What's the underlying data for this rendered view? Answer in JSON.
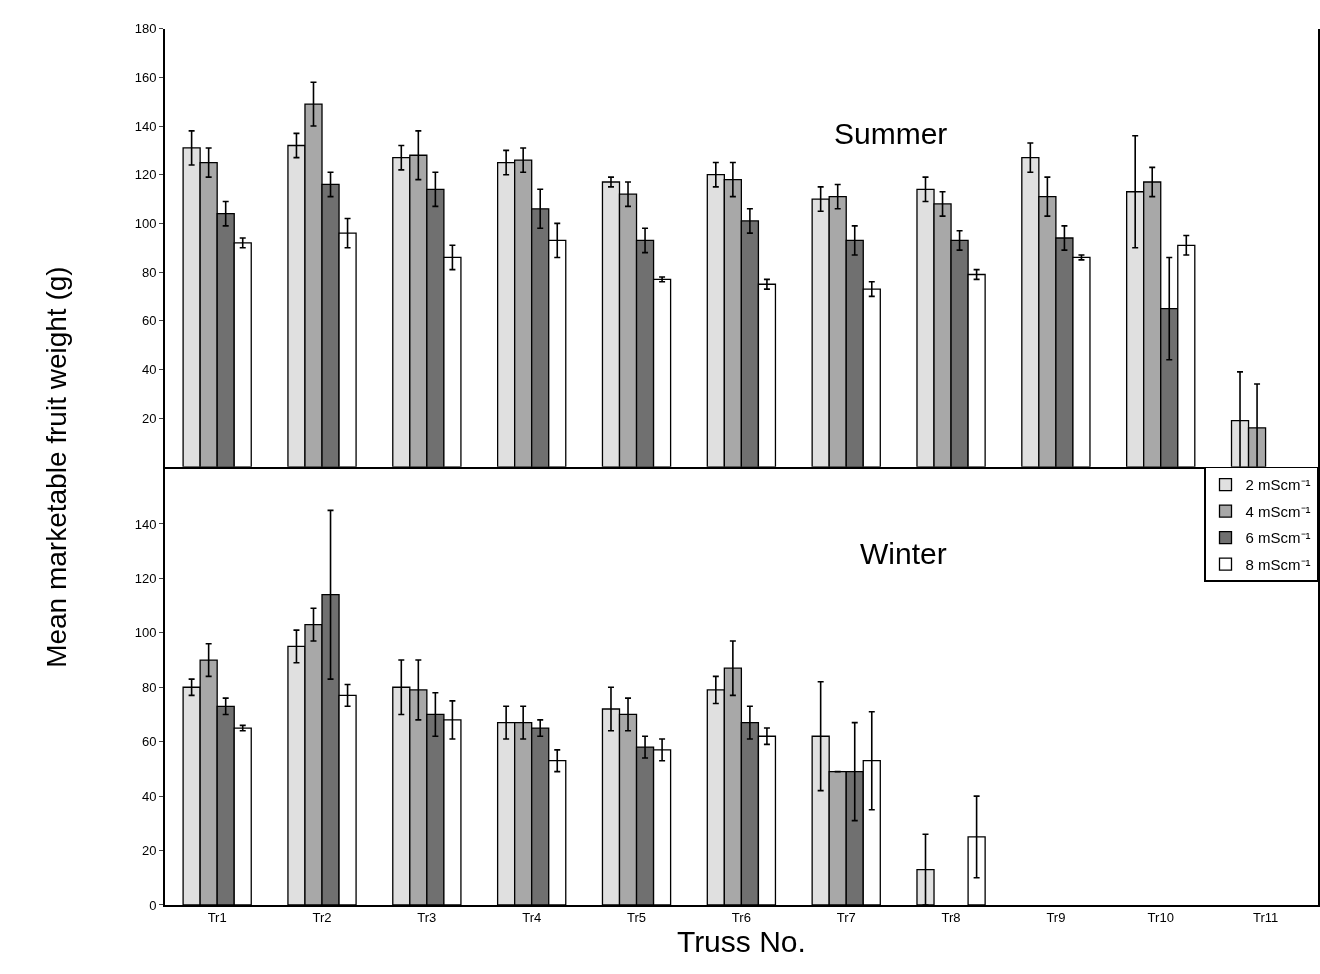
{
  "chart_data": [
    {
      "type": "bar",
      "title": "Summer",
      "ylabel": "Mean marketable fruit weight (g)",
      "categories": [
        null,
        null,
        null,
        null,
        null,
        null,
        null,
        null,
        null,
        null,
        null
      ],
      "series": [
        {
          "color": "#e0e0e0",
          "values": [
            131,
            132,
            127,
            125,
            117,
            120,
            110,
            114,
            127,
            113,
            19
          ],
          "errors": [
            7,
            5,
            5,
            5,
            2,
            5,
            5,
            5,
            6,
            23,
            20
          ]
        },
        {
          "color": "#a8a8a8",
          "values": [
            125,
            149,
            128,
            126,
            112,
            118,
            111,
            108,
            111,
            117,
            16
          ],
          "errors": [
            6,
            9,
            10,
            5,
            5,
            7,
            5,
            5,
            8,
            6,
            18
          ]
        },
        {
          "color": "#707070",
          "values": [
            104,
            116,
            114,
            106,
            93,
            101,
            93,
            93,
            94,
            65,
            null
          ],
          "errors": [
            5,
            5,
            7,
            8,
            5,
            5,
            6,
            4,
            5,
            21,
            null
          ]
        },
        {
          "color": "#ffffff",
          "values": [
            92,
            96,
            86,
            93,
            77,
            75,
            73,
            79,
            86,
            91,
            null
          ],
          "errors": [
            2,
            6,
            5,
            7,
            1,
            2,
            3,
            2,
            1,
            4,
            null
          ]
        }
      ],
      "ylim": [
        0,
        180
      ],
      "yticks": [
        20,
        40,
        60,
        80,
        100,
        120,
        140,
        160,
        180
      ],
      "tick_labels": "y",
      "grid": false
    },
    {
      "type": "bar",
      "title": "Winter",
      "xlabel": "Truss No.",
      "categories": [
        "Tr1",
        "Tr2",
        "Tr3",
        "Tr4",
        "Tr5",
        "Tr6",
        "Tr7",
        "Tr8",
        "Tr9",
        "Tr10",
        "Tr11"
      ],
      "series": [
        {
          "name": "2 mScm⁻¹",
          "color": "#e0e0e0",
          "values": [
            80,
            95,
            80,
            67,
            72,
            79,
            62,
            13,
            null,
            null,
            null
          ],
          "errors": [
            3,
            6,
            10,
            6,
            8,
            5,
            20,
            13,
            null,
            null,
            null
          ]
        },
        {
          "name": "4 mScm⁻¹",
          "color": "#a8a8a8",
          "values": [
            90,
            103,
            79,
            67,
            70,
            87,
            49,
            null,
            null,
            null,
            null
          ],
          "errors": [
            6,
            6,
            11,
            6,
            6,
            10,
            null,
            null,
            null,
            null,
            null
          ]
        },
        {
          "name": "6 mScm⁻¹",
          "color": "#707070",
          "values": [
            73,
            114,
            70,
            65,
            58,
            67,
            49,
            null,
            null,
            null,
            null
          ],
          "errors": [
            3,
            31,
            8,
            3,
            4,
            6,
            18,
            null,
            null,
            null,
            null
          ]
        },
        {
          "name": "8 mScm⁻¹",
          "color": "#ffffff",
          "values": [
            65,
            77,
            68,
            53,
            57,
            62,
            53,
            25,
            null,
            null,
            null
          ],
          "errors": [
            1,
            4,
            7,
            4,
            4,
            3,
            18,
            15,
            null,
            null,
            null
          ]
        }
      ],
      "ylim": [
        0,
        161
      ],
      "yticks": [
        0,
        20,
        40,
        60,
        80,
        100,
        120,
        140
      ],
      "legend": "top right",
      "grid": false
    }
  ]
}
